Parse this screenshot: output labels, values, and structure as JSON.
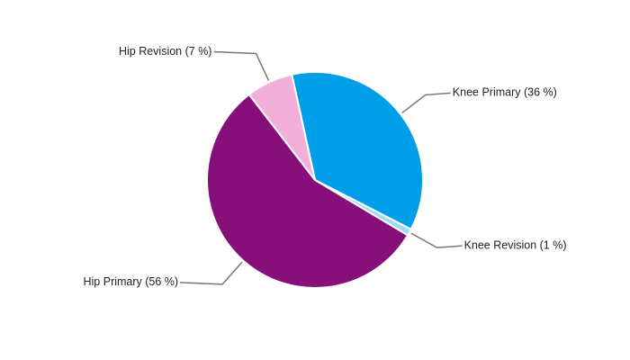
{
  "chart_data": {
    "type": "pie",
    "values": [
      36,
      1,
      56,
      7
    ],
    "value_labels": [
      "Knee Primary (36 %)",
      "Knee Revision (1 %)",
      "Hip Primary (56 %)",
      "Hip Revision (7 %)"
    ],
    "colors": [
      "#009de8",
      "#9fd9f5",
      "#860f7a",
      "#f2afd9"
    ]
  }
}
